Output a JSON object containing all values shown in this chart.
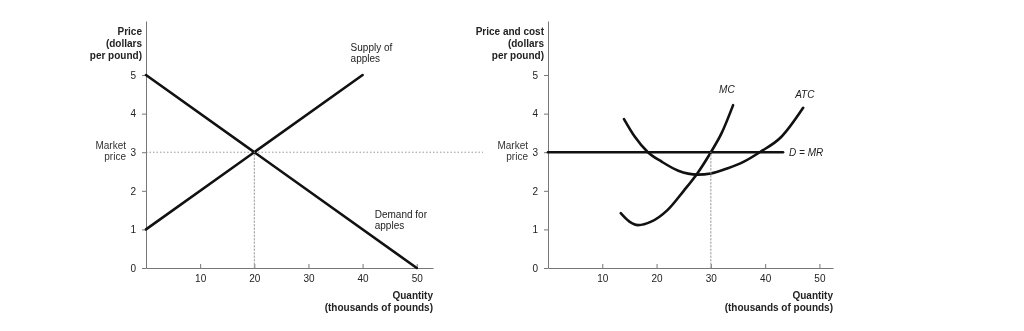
{
  "chart_data": [
    {
      "type": "line",
      "xlabel": "Quantity\n(thousands of pounds)",
      "ylabel": "Price\n(dollars\nper pound)",
      "xlim": [
        0,
        53
      ],
      "ylim": [
        0,
        6.4
      ],
      "xticks": [
        10,
        20,
        30,
        40,
        50
      ],
      "yticks": [
        0,
        1,
        2,
        3,
        4,
        5
      ],
      "grid": false,
      "marker": "none",
      "series": [
        {
          "name": "Supply of apples",
          "color": "#111111",
          "x": [
            0,
            40
          ],
          "values": [
            1,
            5
          ]
        },
        {
          "name": "Demand for apples",
          "color": "#111111",
          "x": [
            0,
            50
          ],
          "values": [
            5,
            0
          ]
        },
        {
          "color": "#999999",
          "x": [
            20,
            20
          ],
          "values": [
            0,
            3
          ],
          "line_style": "dotted"
        }
      ],
      "ref_lines": [
        {
          "axis": "y",
          "value": 3,
          "label": "Market price",
          "color": "#999999",
          "line_style": "dotted"
        }
      ]
    },
    {
      "type": "line",
      "xlabel": "Quantity\n(thousands of pounds)",
      "ylabel": "Price and cost\n(dollars\nper pound)",
      "xlim": [
        0,
        52.5
      ],
      "ylim": [
        0,
        6.4
      ],
      "xticks": [
        10,
        20,
        30,
        40,
        50
      ],
      "yticks": [
        0,
        1,
        2,
        3,
        4,
        5
      ],
      "grid": false,
      "marker": "none",
      "series": [
        {
          "name": "MC",
          "color": "#111111",
          "x": [
            13.4,
            15,
            16.6,
            19,
            22,
            25,
            27.5,
            30,
            32,
            34.1
          ],
          "values": [
            1.42,
            1.2,
            1.11,
            1.2,
            1.5,
            2.0,
            2.45,
            3.0,
            3.5,
            4.22
          ]
        },
        {
          "name": "ATC",
          "color": "#111111",
          "x": [
            14,
            16,
            18.4,
            21,
            24,
            27.6,
            30,
            33,
            36,
            39,
            43,
            47
          ],
          "values": [
            3.86,
            3.4,
            3.0,
            2.75,
            2.52,
            2.42,
            2.45,
            2.58,
            2.75,
            3.0,
            3.4,
            4.15
          ]
        },
        {
          "name": "D = MR",
          "color": "#111111",
          "x": [
            0,
            43.3
          ],
          "values": [
            3,
            3
          ]
        },
        {
          "color": "#999999",
          "x": [
            30,
            30
          ],
          "values": [
            0,
            3
          ],
          "line_style": "dotted"
        }
      ],
      "annotations": [
        {
          "text": "Market price",
          "x": 0,
          "y": 3
        }
      ]
    }
  ]
}
